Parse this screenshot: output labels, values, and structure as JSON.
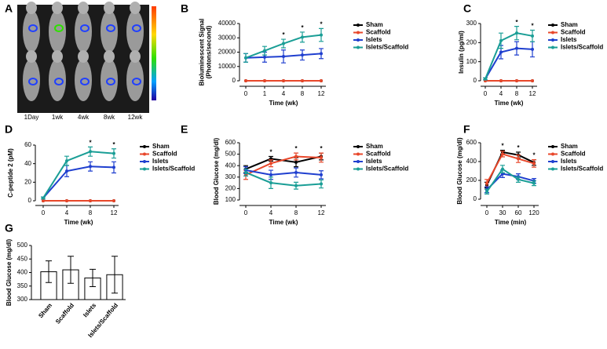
{
  "image_panel": {
    "label": "A",
    "timepoints": [
      "1Day",
      "1wk",
      "4wk",
      "8wk",
      "12wk"
    ]
  },
  "chart_data": [
    {
      "type": "line",
      "panel_label": "B",
      "x_label": "Time (wk)",
      "y_label": [
        "Bioluminescent Signal",
        "(Photons/second)"
      ],
      "categories": [
        "0",
        "1",
        "4",
        "8",
        "12"
      ],
      "ylim": [
        0,
        40000
      ],
      "yticks": [
        0,
        10000,
        20000,
        30000,
        40000
      ],
      "series": [
        {
          "name": "Sham",
          "color": "#000000",
          "values": [
            0,
            0,
            0,
            0,
            0
          ],
          "errors": [
            0,
            0,
            0,
            0,
            0
          ]
        },
        {
          "name": "Scaffold",
          "color": "#e8472a",
          "values": [
            0,
            0,
            0,
            0,
            0
          ],
          "errors": [
            0,
            0,
            0,
            0,
            0
          ]
        },
        {
          "name": "Islets",
          "color": "#1f3fcf",
          "values": [
            16000,
            16500,
            17000,
            18000,
            19000
          ],
          "errors": [
            3000,
            3500,
            4500,
            3500,
            3500
          ]
        },
        {
          "name": "Islets/Scaffold",
          "color": "#1a9e96",
          "values": [
            16000,
            21000,
            26000,
            30500,
            32000
          ],
          "errors": [
            3000,
            3000,
            3000,
            3500,
            4500
          ]
        }
      ],
      "annotations": [
        {
          "text": "*",
          "x": "4"
        },
        {
          "text": "*",
          "x": "8"
        },
        {
          "text": "*",
          "x": "12"
        }
      ]
    },
    {
      "type": "line",
      "panel_label": "C",
      "x_label": "Time (wk)",
      "y_label": "Insulin (pg/ml)",
      "categories": [
        "0",
        "4",
        "8",
        "12"
      ],
      "ylim": [
        0,
        300
      ],
      "yticks": [
        0,
        100,
        200,
        300
      ],
      "series": [
        {
          "name": "Sham",
          "color": "#000000",
          "values": [
            0,
            0,
            0,
            0
          ],
          "errors": [
            0,
            0,
            0,
            0
          ]
        },
        {
          "name": "Scaffold",
          "color": "#e8472a",
          "values": [
            0,
            0,
            0,
            0
          ],
          "errors": [
            0,
            0,
            0,
            0
          ]
        },
        {
          "name": "Islets",
          "color": "#1f3fcf",
          "values": [
            10,
            150,
            170,
            165
          ],
          "errors": [
            5,
            35,
            35,
            40
          ]
        },
        {
          "name": "Islets/Scaffold",
          "color": "#1a9e96",
          "values": [
            10,
            210,
            250,
            235
          ],
          "errors": [
            5,
            40,
            35,
            30
          ]
        }
      ],
      "annotations": [
        {
          "text": "*",
          "x": "8"
        },
        {
          "text": "*",
          "x": "12"
        }
      ]
    },
    {
      "type": "line",
      "panel_label": "D",
      "x_label": "Time (wk)",
      "y_label": "C-peptide 2 (pM)",
      "categories": [
        "0",
        "4",
        "8",
        "12"
      ],
      "ylim": [
        0,
        60
      ],
      "yticks": [
        0,
        20,
        40,
        60
      ],
      "series": [
        {
          "name": "Sham",
          "color": "#000000",
          "values": [
            0,
            0,
            0,
            0
          ],
          "errors": [
            0,
            0,
            0,
            0
          ]
        },
        {
          "name": "Scaffold",
          "color": "#e8472a",
          "values": [
            0,
            0,
            0,
            0
          ],
          "errors": [
            0,
            0,
            0,
            0
          ]
        },
        {
          "name": "Islets",
          "color": "#1f3fcf",
          "values": [
            3,
            32,
            37,
            36
          ],
          "errors": [
            1,
            6,
            5,
            6
          ]
        },
        {
          "name": "Islets/Scaffold",
          "color": "#1a9e96",
          "values": [
            3,
            43,
            53,
            51
          ],
          "errors": [
            1,
            5,
            5,
            5
          ]
        }
      ],
      "annotations": [
        {
          "text": "*",
          "x": "8"
        },
        {
          "text": "*",
          "x": "12"
        }
      ]
    },
    {
      "type": "line",
      "panel_label": "E",
      "x_label": "Time (wk)",
      "y_label": "Blood Glucose (mg/dl)",
      "categories": [
        "0",
        "4",
        "8",
        "12"
      ],
      "ylim": [
        100,
        600
      ],
      "yticks": [
        100,
        200,
        300,
        400,
        500,
        600
      ],
      "series": [
        {
          "name": "Sham",
          "color": "#000000",
          "values": [
            370,
            460,
            430,
            480
          ],
          "errors": [
            30,
            20,
            40,
            30
          ]
        },
        {
          "name": "Scaffold",
          "color": "#e8472a",
          "values": [
            320,
            420,
            480,
            470
          ],
          "errors": [
            40,
            30,
            30,
            40
          ]
        },
        {
          "name": "Islets",
          "color": "#1f3fcf",
          "values": [
            360,
            320,
            340,
            320
          ],
          "errors": [
            30,
            40,
            40,
            35
          ]
        },
        {
          "name": "Islets/Scaffold",
          "color": "#1a9e96",
          "values": [
            340,
            250,
            225,
            240
          ],
          "errors": [
            30,
            50,
            30,
            35
          ]
        }
      ],
      "annotations": [
        {
          "text": "*",
          "x": "4"
        },
        {
          "text": "*",
          "x": "8"
        },
        {
          "text": "*",
          "x": "12"
        }
      ]
    },
    {
      "type": "line",
      "panel_label": "F",
      "x_label": "Time (min)",
      "y_label": "Blood Glucose (mg/dl)",
      "categories": [
        "0",
        "30",
        "60",
        "120"
      ],
      "ylim": [
        0,
        600
      ],
      "yticks": [
        0,
        200,
        400,
        600
      ],
      "series": [
        {
          "name": "Sham",
          "color": "#000000",
          "values": [
            150,
            500,
            470,
            390
          ],
          "errors": [
            30,
            20,
            30,
            30
          ]
        },
        {
          "name": "Scaffold",
          "color": "#e8472a",
          "values": [
            170,
            480,
            430,
            380
          ],
          "errors": [
            40,
            30,
            40,
            40
          ]
        },
        {
          "name": "Islets",
          "color": "#1f3fcf",
          "values": [
            100,
            270,
            240,
            195
          ],
          "errors": [
            30,
            40,
            30,
            25
          ]
        },
        {
          "name": "Islets/Scaffold",
          "color": "#1a9e96",
          "values": [
            80,
            320,
            210,
            170
          ],
          "errors": [
            25,
            40,
            30,
            25
          ]
        }
      ],
      "annotations": [
        {
          "text": "*",
          "x": "30"
        },
        {
          "text": "*",
          "x": "60"
        },
        {
          "text": "*",
          "x": "120"
        }
      ]
    },
    {
      "type": "bar",
      "panel_label": "G",
      "y_label": "Blood Glucose (mg/dl)",
      "categories": [
        "Sham",
        "Scaffold",
        "Islets",
        "Islets/Scaffold"
      ],
      "ylim": [
        300,
        500
      ],
      "yticks": [
        300,
        350,
        400,
        450,
        500
      ],
      "values": [
        403,
        410,
        380,
        392
      ],
      "errors": [
        40,
        50,
        32,
        68
      ],
      "color": "#ffffff"
    }
  ]
}
